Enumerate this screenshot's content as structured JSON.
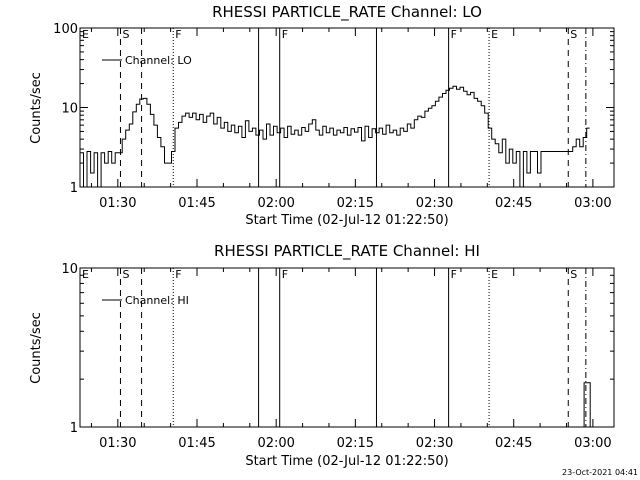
{
  "footer_date": "23-Oct-2021 04:41",
  "chart_data": [
    {
      "type": "line",
      "title": "RHESSI PARTICLE_RATE Channel: LO",
      "xlabel": "Start Time (02-Jul-12 01:22:50)",
      "ylabel": "Counts/sec",
      "yscale": "log",
      "ylim": [
        1,
        100
      ],
      "y_ticks": [
        "1",
        "10",
        "100"
      ],
      "xlim": [
        "01:22:50",
        "03:04:00"
      ],
      "x_ticks": [
        "01:30",
        "01:45",
        "02:00",
        "02:15",
        "02:30",
        "02:45",
        "03:00"
      ],
      "grid": false,
      "legend": {
        "position": "top-left",
        "entries": [
          "Channel: LO"
        ]
      },
      "markers": [
        {
          "label": "E",
          "time": "01:22:50",
          "style": "none"
        },
        {
          "label": "S",
          "time": "01:30:30",
          "style": "dashed"
        },
        {
          "label": "",
          "time": "01:34:30",
          "style": "dashed"
        },
        {
          "label": "F",
          "time": "01:40:30",
          "style": "dotted"
        },
        {
          "label": "",
          "time": "01:56:40",
          "style": "solid"
        },
        {
          "label": "F",
          "time": "02:00:40",
          "style": "solid"
        },
        {
          "label": "",
          "time": "02:19:00",
          "style": "solid"
        },
        {
          "label": "F",
          "time": "02:32:40",
          "style": "solid"
        },
        {
          "label": "E",
          "time": "02:40:20",
          "style": "dotted"
        },
        {
          "label": "S",
          "time": "02:55:20",
          "style": "dashed"
        },
        {
          "label": "",
          "time": "02:58:40",
          "style": "dashdot"
        }
      ],
      "series": [
        {
          "name": "Channel: LO",
          "points": [
            [
              "01:22:50",
              2.7
            ],
            [
              "01:23:30",
              1.0
            ],
            [
              "01:24:10",
              2.8
            ],
            [
              "01:24:50",
              1.5
            ],
            [
              "01:25:30",
              2.7
            ],
            [
              "01:26:10",
              1.0
            ],
            [
              "01:26:50",
              2.7
            ],
            [
              "01:27:30",
              2.0
            ],
            [
              "01:28:10",
              2.8
            ],
            [
              "01:28:50",
              2.0
            ],
            [
              "01:29:30",
              2.7
            ],
            [
              "01:30:10",
              2.7
            ],
            [
              "01:30:50",
              4.0
            ],
            [
              "01:31:30",
              5.2
            ],
            [
              "01:32:10",
              6.2
            ],
            [
              "01:32:50",
              8.8
            ],
            [
              "01:33:30",
              11.0
            ],
            [
              "01:34:10",
              12.8
            ],
            [
              "01:34:50",
              13.0
            ],
            [
              "01:35:30",
              11.0
            ],
            [
              "01:36:10",
              8.2
            ],
            [
              "01:36:50",
              6.0
            ],
            [
              "01:37:30",
              4.2
            ],
            [
              "01:38:10",
              3.2
            ],
            [
              "01:38:50",
              2.0
            ],
            [
              "01:39:30",
              2.0
            ],
            [
              "01:40:10",
              2.8
            ],
            [
              "01:40:50",
              5.5
            ],
            [
              "01:41:30",
              6.5
            ],
            [
              "01:42:10",
              7.8
            ],
            [
              "01:42:50",
              8.5
            ],
            [
              "01:43:30",
              7.5
            ],
            [
              "01:44:10",
              8.5
            ],
            [
              "01:44:50",
              7.0
            ],
            [
              "01:45:30",
              8.2
            ],
            [
              "01:46:10",
              6.5
            ],
            [
              "01:46:50",
              7.8
            ],
            [
              "01:47:30",
              8.5
            ],
            [
              "01:48:10",
              6.2
            ],
            [
              "01:48:50",
              7.5
            ],
            [
              "01:49:30",
              5.5
            ],
            [
              "01:50:10",
              6.5
            ],
            [
              "01:50:50",
              5.0
            ],
            [
              "01:51:30",
              6.0
            ],
            [
              "01:52:10",
              4.8
            ],
            [
              "01:52:50",
              5.8
            ],
            [
              "01:53:30",
              4.2
            ],
            [
              "01:54:10",
              6.8
            ],
            [
              "01:54:50",
              5.0
            ],
            [
              "01:55:30",
              5.5
            ],
            [
              "01:56:10",
              4.5
            ],
            [
              "01:56:50",
              5.2
            ],
            [
              "01:57:30",
              4.0
            ],
            [
              "01:58:10",
              6.2
            ],
            [
              "01:58:50",
              4.5
            ],
            [
              "01:59:30",
              5.8
            ],
            [
              "02:00:10",
              4.8
            ],
            [
              "02:00:50",
              5.5
            ],
            [
              "02:01:30",
              4.2
            ],
            [
              "02:02:10",
              5.8
            ],
            [
              "02:02:50",
              4.6
            ],
            [
              "02:03:30",
              5.2
            ],
            [
              "02:04:10",
              4.5
            ],
            [
              "02:04:50",
              5.6
            ],
            [
              "02:05:30",
              5.0
            ],
            [
              "02:06:10",
              6.2
            ],
            [
              "02:06:50",
              7.0
            ],
            [
              "02:07:30",
              5.2
            ],
            [
              "02:08:10",
              4.5
            ],
            [
              "02:08:50",
              5.8
            ],
            [
              "02:09:30",
              4.8
            ],
            [
              "02:10:10",
              5.5
            ],
            [
              "02:10:50",
              4.5
            ],
            [
              "02:11:30",
              5.2
            ],
            [
              "02:12:10",
              4.8
            ],
            [
              "02:12:50",
              5.6
            ],
            [
              "02:13:30",
              4.5
            ],
            [
              "02:14:10",
              5.4
            ],
            [
              "02:14:50",
              4.9
            ],
            [
              "02:15:30",
              5.6
            ],
            [
              "02:16:10",
              3.8
            ],
            [
              "02:16:50",
              5.8
            ],
            [
              "02:17:30",
              4.2
            ],
            [
              "02:18:10",
              5.4
            ],
            [
              "02:18:50",
              4.8
            ],
            [
              "02:19:30",
              5.5
            ],
            [
              "02:20:10",
              4.6
            ],
            [
              "02:20:50",
              6.0
            ],
            [
              "02:21:30",
              4.8
            ],
            [
              "02:22:10",
              5.2
            ],
            [
              "02:22:50",
              4.5
            ],
            [
              "02:23:30",
              5.5
            ],
            [
              "02:24:10",
              5.0
            ],
            [
              "02:24:50",
              6.2
            ],
            [
              "02:25:30",
              5.5
            ],
            [
              "02:26:10",
              7.0
            ],
            [
              "02:26:50",
              7.8
            ],
            [
              "02:27:30",
              7.5
            ],
            [
              "02:28:10",
              9.0
            ],
            [
              "02:28:50",
              9.8
            ],
            [
              "02:29:30",
              10.5
            ],
            [
              "02:30:10",
              12.0
            ],
            [
              "02:30:50",
              13.5
            ],
            [
              "02:31:30",
              15.0
            ],
            [
              "02:32:10",
              16.5
            ],
            [
              "02:32:50",
              17.5
            ],
            [
              "02:33:30",
              18.5
            ],
            [
              "02:34:10",
              17.0
            ],
            [
              "02:34:50",
              18.0
            ],
            [
              "02:35:30",
              16.0
            ],
            [
              "02:36:10",
              14.5
            ],
            [
              "02:36:50",
              15.5
            ],
            [
              "02:37:30",
              13.0
            ],
            [
              "02:38:10",
              12.0
            ],
            [
              "02:38:50",
              10.5
            ],
            [
              "02:39:30",
              8.5
            ],
            [
              "02:40:10",
              5.5
            ],
            [
              "02:40:50",
              4.0
            ],
            [
              "02:41:30",
              3.5
            ],
            [
              "02:42:10",
              2.7
            ],
            [
              "02:42:50",
              4.0
            ],
            [
              "02:43:30",
              2.0
            ],
            [
              "02:44:10",
              3.0
            ],
            [
              "02:44:50",
              2.0
            ],
            [
              "02:45:30",
              2.8
            ],
            [
              "02:46:10",
              1.0
            ],
            [
              "02:46:50",
              2.8
            ],
            [
              "02:47:30",
              1.5
            ],
            [
              "02:48:10",
              2.8
            ],
            [
              "02:48:50",
              2.8
            ],
            [
              "02:49:30",
              1.5
            ],
            [
              "02:50:10",
              2.8
            ],
            [
              "02:50:50",
              2.8
            ],
            [
              "02:51:30",
              2.8
            ],
            [
              "02:52:10",
              2.8
            ],
            [
              "02:52:50",
              2.8
            ],
            [
              "02:53:30",
              2.8
            ],
            [
              "02:54:10",
              2.8
            ],
            [
              "02:54:50",
              2.8
            ],
            [
              "02:55:30",
              2.8
            ],
            [
              "02:56:10",
              3.2
            ],
            [
              "02:56:50",
              4.0
            ],
            [
              "02:57:30",
              3.2
            ],
            [
              "02:58:10",
              4.2
            ],
            [
              "02:58:50",
              5.5
            ]
          ]
        }
      ]
    },
    {
      "type": "line",
      "title": "RHESSI PARTICLE_RATE Channel: HI",
      "xlabel": "Start Time (02-Jul-12 01:22:50)",
      "ylabel": "Counts/sec",
      "yscale": "log",
      "ylim": [
        1,
        10
      ],
      "y_ticks": [
        "1",
        "10"
      ],
      "xlim": [
        "01:22:50",
        "03:04:00"
      ],
      "x_ticks": [
        "01:30",
        "01:45",
        "02:00",
        "02:15",
        "02:30",
        "02:45",
        "03:00"
      ],
      "grid": false,
      "legend": {
        "position": "top-left",
        "entries": [
          "Channel: HI"
        ]
      },
      "markers": [
        {
          "label": "E",
          "time": "01:22:50",
          "style": "none"
        },
        {
          "label": "S",
          "time": "01:30:30",
          "style": "dashed"
        },
        {
          "label": "",
          "time": "01:34:30",
          "style": "dashed"
        },
        {
          "label": "F",
          "time": "01:40:30",
          "style": "dotted"
        },
        {
          "label": "",
          "time": "01:56:40",
          "style": "solid"
        },
        {
          "label": "F",
          "time": "02:00:40",
          "style": "solid"
        },
        {
          "label": "",
          "time": "02:19:00",
          "style": "solid"
        },
        {
          "label": "F",
          "time": "02:32:40",
          "style": "solid"
        },
        {
          "label": "E",
          "time": "02:40:20",
          "style": "dotted"
        },
        {
          "label": "S",
          "time": "02:55:20",
          "style": "dashed"
        },
        {
          "label": "",
          "time": "02:58:40",
          "style": "dashdot"
        }
      ],
      "series": [
        {
          "name": "Channel: HI",
          "points": [
            [
              "02:58:00",
              1.0
            ],
            [
              "02:58:20",
              1.9
            ],
            [
              "02:59:10",
              1.9
            ],
            [
              "02:59:30",
              1.0
            ]
          ]
        }
      ]
    }
  ]
}
